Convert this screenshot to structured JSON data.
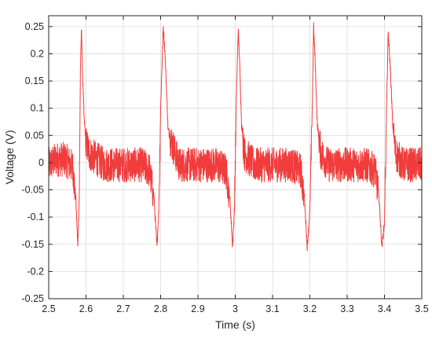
{
  "chart_data": {
    "type": "line",
    "title": "",
    "xlabel": "Time (s)",
    "ylabel": "Voltage (V)",
    "xlim": [
      2.5,
      3.5
    ],
    "ylim": [
      -0.25,
      0.27
    ],
    "xticks": [
      2.5,
      2.6,
      2.7,
      2.8,
      2.9,
      3.0,
      3.1,
      3.2,
      3.3,
      3.4,
      3.5
    ],
    "xtick_labels": [
      "2.5",
      "2.6",
      "2.7",
      "2.8",
      "2.9",
      "3",
      "3.1",
      "3.2",
      "3.3",
      "3.4",
      "3.5"
    ],
    "yticks": [
      -0.25,
      -0.2,
      -0.15,
      -0.1,
      -0.05,
      0,
      0.05,
      0.1,
      0.15,
      0.2,
      0.25
    ],
    "ytick_labels": [
      "-0.25",
      "-0.2",
      "-0.15",
      "-0.1",
      "-0.05",
      "0",
      "0.05",
      "0.1",
      "0.15",
      "0.2",
      "0.25"
    ],
    "grid": true,
    "legend": "none",
    "series": [
      {
        "color": "#f03c3c",
        "description": "noisy periodic pulse train, period about 0.21 s, baseline noise band about -0.04 to 0.03 V",
        "x": [
          2.5,
          2.52,
          2.545,
          2.565,
          2.573,
          2.578,
          2.582,
          2.585,
          2.588,
          2.59,
          2.595,
          2.6,
          2.61,
          2.65,
          2.7,
          2.75,
          2.77,
          2.782,
          2.79,
          2.795,
          2.8,
          2.807,
          2.812,
          2.82,
          2.85,
          2.9,
          2.95,
          2.975,
          2.985,
          2.993,
          2.998,
          3.003,
          3.008,
          3.012,
          3.017,
          3.025,
          3.05,
          3.1,
          3.15,
          3.175,
          3.185,
          3.193,
          3.2,
          3.207,
          3.21,
          3.214,
          3.22,
          3.23,
          3.25,
          3.3,
          3.35,
          3.375,
          3.385,
          3.393,
          3.4,
          3.405,
          3.41,
          3.416,
          3.422,
          3.43,
          3.45,
          3.5
        ],
        "y": [
          0.0,
          0.01,
          0.01,
          -0.005,
          -0.07,
          -0.155,
          -0.06,
          0.17,
          0.25,
          0.18,
          0.08,
          0.04,
          0.02,
          0.0,
          0.0,
          0.0,
          -0.01,
          -0.06,
          -0.155,
          -0.09,
          0.1,
          0.25,
          0.2,
          0.06,
          0.0,
          0.0,
          0.0,
          -0.01,
          -0.06,
          -0.155,
          -0.08,
          0.12,
          0.245,
          0.18,
          0.07,
          0.02,
          0.0,
          0.0,
          0.0,
          -0.01,
          -0.06,
          -0.155,
          -0.09,
          0.12,
          0.25,
          0.19,
          0.07,
          0.02,
          0.0,
          0.0,
          0.0,
          -0.01,
          -0.06,
          -0.155,
          -0.11,
          0.08,
          0.24,
          0.17,
          0.07,
          0.02,
          0.0,
          0.0
        ]
      }
    ]
  }
}
